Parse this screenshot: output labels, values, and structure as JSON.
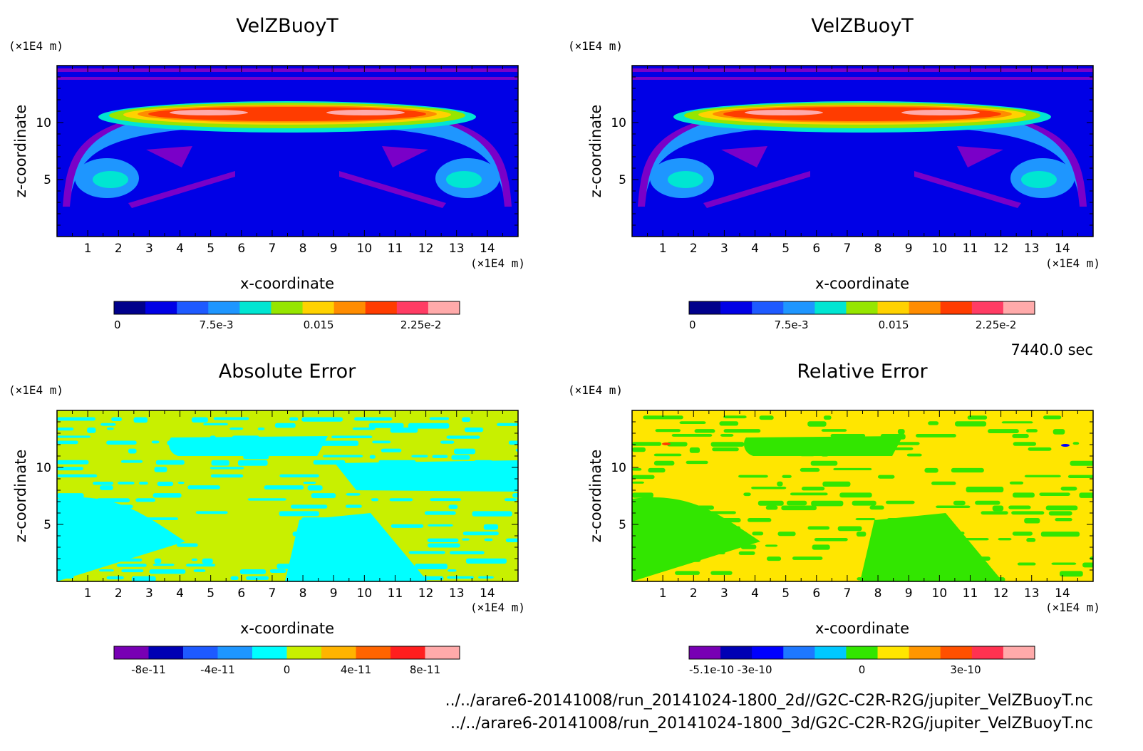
{
  "chart_data": [
    {
      "type": "heatmap",
      "title": "VelZBuoyT",
      "xlabel": "x-coordinate",
      "ylabel": "z-coordinate",
      "x_unit": "(×1E4 m)",
      "y_unit": "(×1E4 m)",
      "xlim": [
        0,
        15
      ],
      "ylim": [
        0,
        15
      ],
      "x_ticks": [
        "1",
        "2",
        "3",
        "4",
        "5",
        "6",
        "7",
        "8",
        "9",
        "10",
        "11",
        "12",
        "13",
        "14"
      ],
      "y_ticks": [
        "5",
        "10"
      ],
      "colorbar": {
        "colors": [
          "#00008b",
          "#0000e6",
          "#1e5aff",
          "#1e96ff",
          "#00e6d2",
          "#96e600",
          "#ffd200",
          "#ff8c00",
          "#ff3c00",
          "#ff3c64",
          "#ffaaaa"
        ],
        "labels": [
          "0",
          "7.5e-3",
          "0.015",
          "2.25e-2"
        ]
      }
    },
    {
      "type": "heatmap",
      "title": "VelZBuoyT",
      "xlabel": "x-coordinate",
      "ylabel": "z-coordinate",
      "x_unit": "(×1E4 m)",
      "y_unit": "(×1E4 m)",
      "xlim": [
        0,
        15
      ],
      "ylim": [
        0,
        15
      ],
      "x_ticks": [
        "1",
        "2",
        "3",
        "4",
        "5",
        "6",
        "7",
        "8",
        "9",
        "10",
        "11",
        "12",
        "13",
        "14"
      ],
      "y_ticks": [
        "5",
        "10"
      ],
      "colorbar": {
        "colors": [
          "#00008b",
          "#0000e6",
          "#1e5aff",
          "#1e96ff",
          "#00e6d2",
          "#96e600",
          "#ffd200",
          "#ff8c00",
          "#ff3c00",
          "#ff3c64",
          "#ffaaaa"
        ],
        "labels": [
          "0",
          "7.5e-3",
          "0.015",
          "2.25e-2"
        ]
      }
    },
    {
      "type": "heatmap",
      "title": "Absolute Error",
      "xlabel": "x-coordinate",
      "ylabel": "z-coordinate",
      "x_unit": "(×1E4 m)",
      "y_unit": "(×1E4 m)",
      "xlim": [
        0,
        15
      ],
      "ylim": [
        0,
        15
      ],
      "x_ticks": [
        "1",
        "2",
        "3",
        "4",
        "5",
        "6",
        "7",
        "8",
        "9",
        "10",
        "11",
        "12",
        "13",
        "14"
      ],
      "y_ticks": [
        "5",
        "10"
      ],
      "colorbar": {
        "colors": [
          "#7800b4",
          "#0000b4",
          "#1e5aff",
          "#1e96ff",
          "#00ffff",
          "#c8f000",
          "#ffb400",
          "#ff6400",
          "#ff1e1e",
          "#ffaaaa"
        ],
        "labels": [
          "-8e-11",
          "-4e-11",
          "0",
          "4e-11",
          "8e-11"
        ]
      }
    },
    {
      "type": "heatmap",
      "title": "Relative Error",
      "xlabel": "x-coordinate",
      "ylabel": "z-coordinate",
      "x_unit": "(×1E4 m)",
      "y_unit": "(×1E4 m)",
      "xlim": [
        0,
        15
      ],
      "ylim": [
        0,
        15
      ],
      "x_ticks": [
        "1",
        "2",
        "3",
        "4",
        "5",
        "6",
        "7",
        "8",
        "9",
        "10",
        "11",
        "12",
        "13",
        "14"
      ],
      "y_ticks": [
        "5",
        "10"
      ],
      "colorbar": {
        "colors": [
          "#7800b4",
          "#0000b4",
          "#0000ff",
          "#1e78ff",
          "#00c8ff",
          "#32e600",
          "#ffe600",
          "#ff9600",
          "#ff5000",
          "#ff3250",
          "#ffaaaa"
        ],
        "labels": [
          "-5.1e-10",
          "-3e-10",
          "0",
          "3e-10"
        ]
      }
    }
  ],
  "time_label": "7440.0 sec",
  "footer": {
    "file1": "../../arare6-20141008/run_20141024-1800_2d//G2C-C2R-R2G/jupiter_VelZBuoyT.nc",
    "file2": "../../arare6-20141008/run_20141024-1800_3d/G2C-C2R-R2G/jupiter_VelZBuoyT.nc"
  }
}
